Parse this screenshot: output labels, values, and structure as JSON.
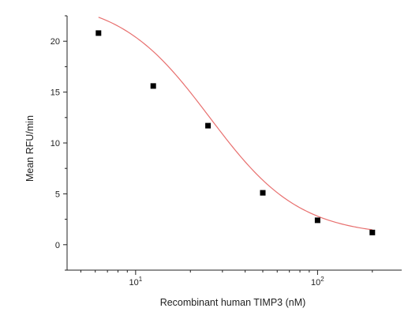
{
  "chart_data": {
    "type": "scatter",
    "title": "",
    "xlabel": "Recombinant human TIMP3 (nM)",
    "ylabel": "Mean RFU/min",
    "x_scale": "log",
    "xlim": [
      4.2,
      290
    ],
    "ylim": [
      -2.5,
      22.5
    ],
    "x_ticks": [
      {
        "value": 10,
        "base": "10",
        "exp": "1"
      },
      {
        "value": 100,
        "base": "10",
        "exp": "2"
      }
    ],
    "y_ticks": [
      0,
      5,
      10,
      15,
      20
    ],
    "grid": false,
    "legend": "none",
    "series": [
      {
        "x": [
          6.25,
          12.5,
          25,
          50,
          100,
          200
        ],
        "y": [
          20.8,
          15.6,
          11.7,
          5.1,
          2.4,
          1.2
        ],
        "marker_color": "#000000"
      }
    ],
    "fit": {
      "model": "4PL",
      "top": 24.2,
      "bottom": 0.85,
      "ec50": 25.5,
      "hill": 1.75,
      "color": "#e8706f"
    },
    "colors": {
      "axis": "#222222",
      "background": "#ffffff"
    }
  }
}
